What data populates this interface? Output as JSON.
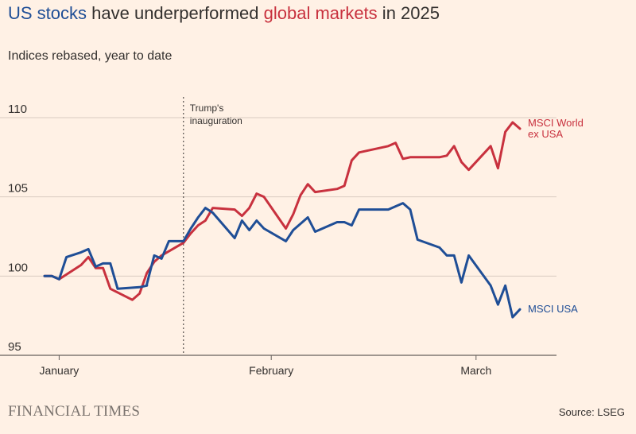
{
  "header": {
    "title_part1": "US stocks",
    "title_part2": " have underperformed ",
    "title_part3": "global markets",
    "title_part4": " in 2025",
    "subtitle": "Indices rebased, year to date"
  },
  "footer": {
    "logo": "FINANCIAL TIMES",
    "source": "Source: LSEG"
  },
  "colors": {
    "background": "#FFF1E5",
    "us": "#1F4E96",
    "world": "#C8313E",
    "grid": "#D9CCC1",
    "axis": "#66605C",
    "text": "#33302E"
  },
  "chart_data": {
    "type": "line",
    "title": "US stocks have underperformed global markets in 2025",
    "subtitle": "Indices rebased, year to date",
    "xlabel": "",
    "ylabel": "",
    "ylim": [
      95,
      111
    ],
    "yticks": [
      95,
      100,
      105,
      110
    ],
    "xlim": [
      "2025-01-01",
      "2025-03-12"
    ],
    "xticks": [
      {
        "label": "January",
        "date": "2025-01-03"
      },
      {
        "label": "February",
        "date": "2025-02-01"
      },
      {
        "label": "March",
        "date": "2025-03-01"
      }
    ],
    "grid": true,
    "annotations": [
      {
        "text_lines": [
          "Trump's",
          "inauguration"
        ],
        "date": "2025-01-20"
      }
    ],
    "series": [
      {
        "name": "MSCI World ex USA",
        "label_lines": [
          "MSCI World",
          "ex USA"
        ],
        "color": "#C8313E",
        "points": [
          [
            "2025-01-01",
            100.0
          ],
          [
            "2025-01-02",
            100.0
          ],
          [
            "2025-01-03",
            99.8
          ],
          [
            "2025-01-06",
            100.7
          ],
          [
            "2025-01-07",
            101.2
          ],
          [
            "2025-01-08",
            100.5
          ],
          [
            "2025-01-09",
            100.5
          ],
          [
            "2025-01-10",
            99.2
          ],
          [
            "2025-01-13",
            98.5
          ],
          [
            "2025-01-14",
            98.9
          ],
          [
            "2025-01-15",
            100.2
          ],
          [
            "2025-01-16",
            100.9
          ],
          [
            "2025-01-17",
            101.3
          ],
          [
            "2025-01-20",
            102.1
          ],
          [
            "2025-01-21",
            102.7
          ],
          [
            "2025-01-22",
            103.2
          ],
          [
            "2025-01-23",
            103.5
          ],
          [
            "2025-01-24",
            104.3
          ],
          [
            "2025-01-27",
            104.2
          ],
          [
            "2025-01-28",
            103.8
          ],
          [
            "2025-01-29",
            104.3
          ],
          [
            "2025-01-30",
            105.2
          ],
          [
            "2025-01-31",
            105.0
          ],
          [
            "2025-02-03",
            103.0
          ],
          [
            "2025-02-04",
            103.9
          ],
          [
            "2025-02-05",
            105.1
          ],
          [
            "2025-02-06",
            105.8
          ],
          [
            "2025-02-07",
            105.3
          ],
          [
            "2025-02-10",
            105.5
          ],
          [
            "2025-02-11",
            105.7
          ],
          [
            "2025-02-12",
            107.3
          ],
          [
            "2025-02-13",
            107.8
          ],
          [
            "2025-02-14",
            107.9
          ],
          [
            "2025-02-17",
            108.2
          ],
          [
            "2025-02-18",
            108.4
          ],
          [
            "2025-02-19",
            107.4
          ],
          [
            "2025-02-20",
            107.5
          ],
          [
            "2025-02-21",
            107.5
          ],
          [
            "2025-02-24",
            107.5
          ],
          [
            "2025-02-25",
            107.6
          ],
          [
            "2025-02-26",
            108.2
          ],
          [
            "2025-02-27",
            107.2
          ],
          [
            "2025-02-28",
            106.7
          ],
          [
            "2025-03-03",
            108.2
          ],
          [
            "2025-03-04",
            106.8
          ],
          [
            "2025-03-05",
            109.1
          ],
          [
            "2025-03-06",
            109.7
          ],
          [
            "2025-03-07",
            109.3
          ]
        ]
      },
      {
        "name": "MSCI USA",
        "label_lines": [
          "MSCI USA"
        ],
        "color": "#1F4E96",
        "points": [
          [
            "2025-01-01",
            100.0
          ],
          [
            "2025-01-02",
            100.0
          ],
          [
            "2025-01-03",
            99.8
          ],
          [
            "2025-01-04",
            101.2
          ],
          [
            "2025-01-06",
            101.5
          ],
          [
            "2025-01-07",
            101.7
          ],
          [
            "2025-01-08",
            100.6
          ],
          [
            "2025-01-09",
            100.8
          ],
          [
            "2025-01-10",
            100.8
          ],
          [
            "2025-01-11",
            99.2
          ],
          [
            "2025-01-14",
            99.3
          ],
          [
            "2025-01-15",
            99.4
          ],
          [
            "2025-01-15",
            99.5
          ],
          [
            "2025-01-16",
            101.3
          ],
          [
            "2025-01-17",
            101.1
          ],
          [
            "2025-01-18",
            102.2
          ],
          [
            "2025-01-19",
            102.2
          ],
          [
            "2025-01-20",
            102.2
          ],
          [
            "2025-01-21",
            103.0
          ],
          [
            "2025-01-22",
            103.7
          ],
          [
            "2025-01-23",
            104.3
          ],
          [
            "2025-01-24",
            104.0
          ],
          [
            "2025-01-27",
            102.4
          ],
          [
            "2025-01-28",
            103.5
          ],
          [
            "2025-01-29",
            102.9
          ],
          [
            "2025-01-30",
            103.5
          ],
          [
            "2025-01-31",
            103.0
          ],
          [
            "2025-02-03",
            102.2
          ],
          [
            "2025-02-04",
            102.9
          ],
          [
            "2025-02-05",
            103.3
          ],
          [
            "2025-02-06",
            103.7
          ],
          [
            "2025-02-07",
            102.8
          ],
          [
            "2025-02-10",
            103.4
          ],
          [
            "2025-02-11",
            103.4
          ],
          [
            "2025-02-12",
            103.2
          ],
          [
            "2025-02-13",
            104.2
          ],
          [
            "2025-02-17",
            104.2
          ],
          [
            "2025-02-18",
            104.4
          ],
          [
            "2025-02-19",
            104.6
          ],
          [
            "2025-02-20",
            104.2
          ],
          [
            "2025-02-21",
            102.3
          ],
          [
            "2025-02-24",
            101.8
          ],
          [
            "2025-02-25",
            101.3
          ],
          [
            "2025-02-26",
            101.3
          ],
          [
            "2025-02-27",
            99.6
          ],
          [
            "2025-02-28",
            101.3
          ],
          [
            "2025-03-03",
            99.4
          ],
          [
            "2025-03-04",
            98.2
          ],
          [
            "2025-03-05",
            99.4
          ],
          [
            "2025-03-06",
            97.4
          ],
          [
            "2025-03-07",
            97.9
          ]
        ]
      }
    ]
  }
}
